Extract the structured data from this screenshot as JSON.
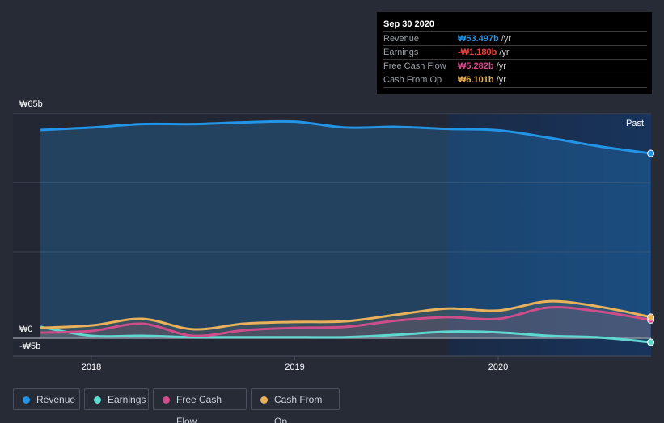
{
  "tooltip": {
    "date": "Sep 30 2020",
    "rows": [
      {
        "label": "Revenue",
        "value": "₩53.497b",
        "unit": " /yr",
        "color": "#2394e6"
      },
      {
        "label": "Earnings",
        "value": "-₩1.180b",
        "unit": " /yr",
        "color": "#e8413a"
      },
      {
        "label": "Free Cash Flow",
        "value": "₩5.282b",
        "unit": " /yr",
        "color": "#cf4d8a"
      },
      {
        "label": "Cash From Op",
        "value": "₩6.101b",
        "unit": " /yr",
        "color": "#e8b15a"
      }
    ]
  },
  "chart_data": {
    "type": "area",
    "y_tick_labels": [
      "₩65b",
      "₩0",
      "-₩5b"
    ],
    "ylim": [
      -5,
      65
    ],
    "xlim": [
      2017.65,
      2020.78
    ],
    "x_tick_labels": [
      "2018",
      "2019",
      "2020"
    ],
    "x_ticks": [
      2018,
      2019,
      2020
    ],
    "past_label": "Past",
    "past_region_start": 2019.75,
    "x": [
      2017.75,
      2018.0,
      2018.25,
      2018.5,
      2018.75,
      2019.0,
      2019.25,
      2019.5,
      2019.75,
      2020.0,
      2020.25,
      2020.5,
      2020.75
    ],
    "series": [
      {
        "name": "Revenue",
        "color": "#2394e6",
        "values": [
          60.3,
          61,
          62,
          62,
          62.5,
          62.7,
          61,
          61.2,
          60.6,
          60.2,
          58,
          55.5,
          53.497
        ]
      },
      {
        "name": "Earnings",
        "color": "#5fd9cf",
        "values": [
          3.3,
          0.7,
          0.7,
          0.3,
          0.3,
          0.3,
          0.3,
          1,
          1.9,
          1.7,
          0.7,
          0.2,
          -1.18
        ]
      },
      {
        "name": "Free Cash Flow",
        "color": "#cf4d8a",
        "values": [
          1.6,
          2.1,
          4.2,
          0.7,
          2.3,
          3,
          3.3,
          5.1,
          6.1,
          5.6,
          8.9,
          7.7,
          5.282
        ]
      },
      {
        "name": "Cash From Op",
        "color": "#e8b15a",
        "values": [
          3,
          3.7,
          5.6,
          2.6,
          4.2,
          4.7,
          4.9,
          6.8,
          8.6,
          8,
          10.7,
          9.1,
          6.101
        ]
      }
    ]
  }
}
